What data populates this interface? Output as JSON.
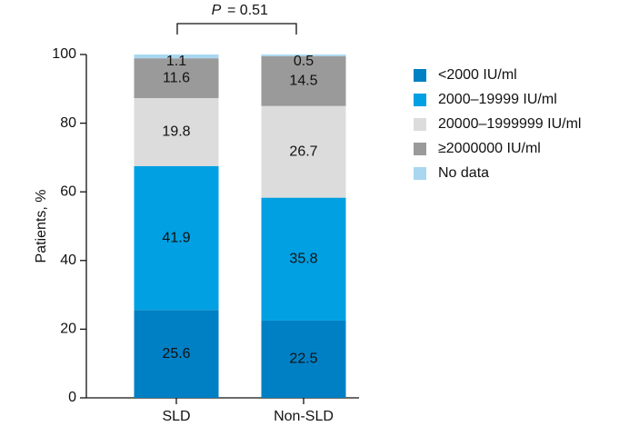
{
  "chart_data": {
    "type": "stacked-bar",
    "annotation_label": "P",
    "annotation_value": "= 0.51",
    "y_label": "Patients, %",
    "categories": [
      "SLD",
      "Non-SLD"
    ],
    "series": [
      {
        "name": "<2000 IU/ml",
        "color": "#0080c4",
        "values": [
          25.6,
          22.5
        ]
      },
      {
        "name": "2000–19999 IU/ml",
        "color": "#00a0e2",
        "values": [
          41.9,
          35.8
        ]
      },
      {
        "name": "20000–1999999 IU/ml",
        "color": "#dcdcdc",
        "values": [
          19.8,
          26.7
        ]
      },
      {
        "name": "≥2000000 IU/ml",
        "color": "#9a9a9a",
        "values": [
          11.6,
          14.5
        ]
      },
      {
        "name": "No data",
        "color": "#a9d7f0",
        "values": [
          1.1,
          0.5
        ]
      }
    ],
    "ylim": [
      0,
      100
    ],
    "yticks": [
      0,
      20,
      40,
      60,
      80,
      100
    ],
    "legend": "right"
  }
}
